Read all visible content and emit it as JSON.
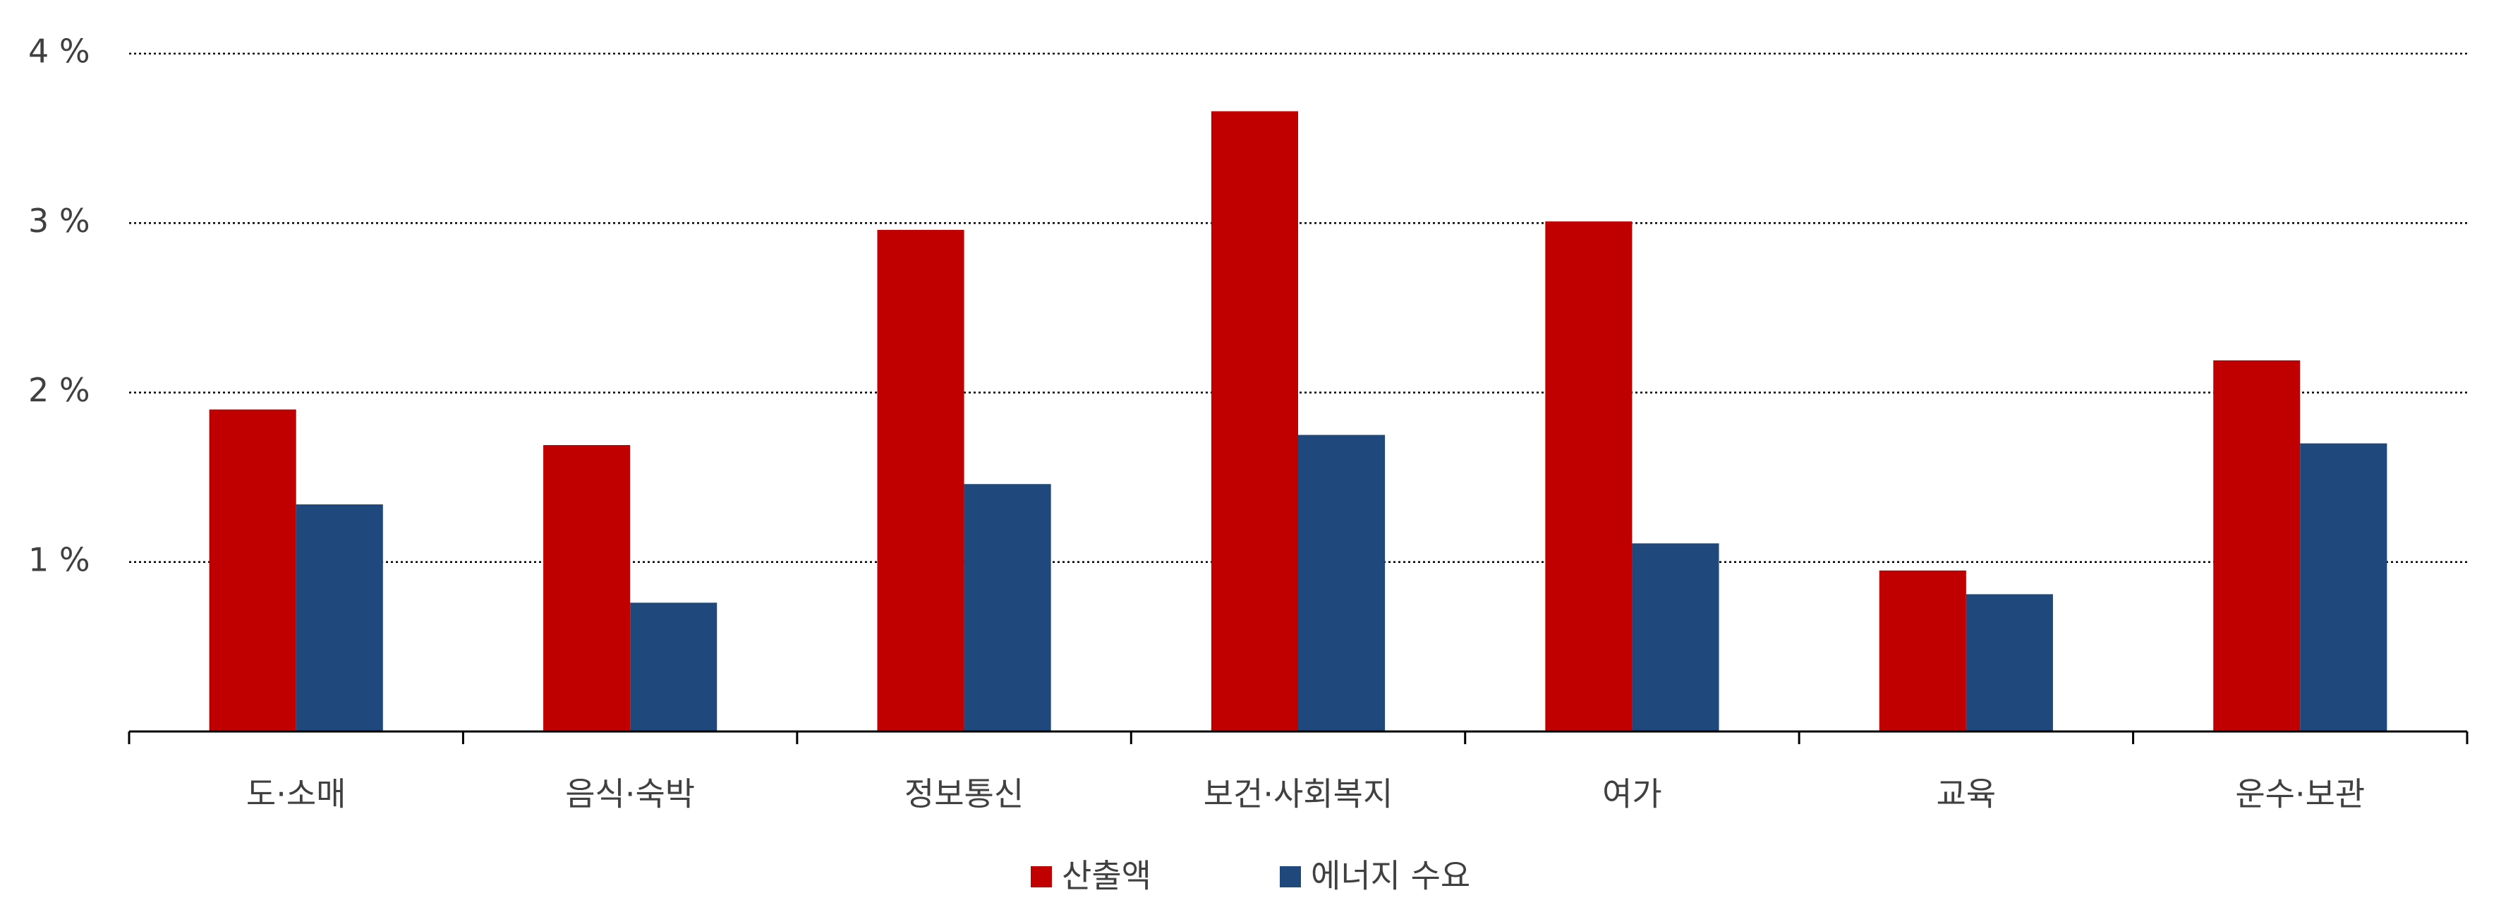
{
  "chart_data": {
    "type": "bar",
    "categories": [
      "도·소매",
      "음식·숙박",
      "정보통신",
      "보건·사회복지",
      "여가",
      "교육",
      "운수·보관"
    ],
    "series": [
      {
        "name": "산출액",
        "color": "#c00000",
        "values": [
          1.9,
          1.69,
          2.96,
          3.66,
          3.01,
          0.95,
          2.19
        ]
      },
      {
        "name": "에너지 수요",
        "color": "#1f497d",
        "values": [
          1.34,
          0.76,
          1.46,
          1.75,
          1.11,
          0.81,
          1.7
        ]
      }
    ],
    "ylim": [
      0,
      4
    ],
    "yticks": [
      {
        "value": 1,
        "label": "1 %"
      },
      {
        "value": 2,
        "label": "2 %"
      },
      {
        "value": 3,
        "label": "3 %"
      },
      {
        "value": 4,
        "label": "4 %"
      }
    ],
    "grid": true
  }
}
